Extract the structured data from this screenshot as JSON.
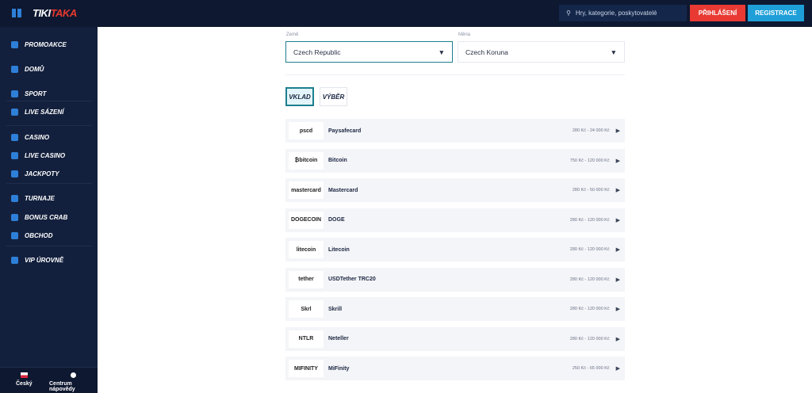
{
  "header": {
    "logo_a": "TIKI",
    "logo_b": "TAKA",
    "search_placeholder": "Hry, kategorie, poskytovatelé",
    "login": "PŘIHLÁŠENÍ",
    "register": "REGISTRACE"
  },
  "sidebar": {
    "items": [
      {
        "label": "PROMOAKCE",
        "icon": "gift-icon"
      },
      {
        "label": "DOMŮ",
        "icon": "home-icon"
      },
      {
        "label": "SPORT",
        "icon": "ball-icon"
      },
      {
        "label": "LIVE SÁZENÍ",
        "icon": "live-icon"
      },
      {
        "label": "CASINO",
        "icon": "casino-icon"
      },
      {
        "label": "LIVE CASINO",
        "icon": "card-icon"
      },
      {
        "label": "JACKPOTY",
        "icon": "seven-icon"
      },
      {
        "label": "TURNAJE",
        "icon": "trophy-icon"
      },
      {
        "label": "BONUS CRAB",
        "icon": "crab-icon"
      },
      {
        "label": "OBCHOD",
        "icon": "shop-icon"
      },
      {
        "label": "VIP ÚROVNĚ",
        "icon": "crown-icon"
      }
    ],
    "footer": {
      "language": "Český",
      "help": "Centrum nápovědy"
    }
  },
  "main": {
    "country_label": "Země",
    "country": "Czech Republic",
    "currency_label": "Měna",
    "currency": "Czech Koruna",
    "tabs": [
      "VKLAD",
      "VÝBĚR"
    ],
    "methods": [
      {
        "logo": "pscd",
        "name": "Paysafecard",
        "range": "280 Kč - 24 000 Kč"
      },
      {
        "logo": "₿bitcoin",
        "name": "Bitcoin",
        "range": "750 Kč - 120 000 Kč"
      },
      {
        "logo": "mastercard",
        "name": "Mastercard",
        "range": "280 Kč - 50 000 Kč"
      },
      {
        "logo": "DOGECOIN",
        "name": "DOGE",
        "range": "280 Kč - 120 000 Kč"
      },
      {
        "logo": "litecoin",
        "name": "Litecoin",
        "range": "280 Kč - 120 000 Kč"
      },
      {
        "logo": "tether",
        "name": "USDTether TRC20",
        "range": "280 Kč - 120 000 Kč"
      },
      {
        "logo": "Skrl",
        "name": "Skrill",
        "range": "280 Kč - 120 000 Kč"
      },
      {
        "logo": "NTLR",
        "name": "Neteller",
        "range": "280 Kč - 120 000 Kč"
      },
      {
        "logo": "MIFINITY",
        "name": "MiFinity",
        "range": "250 Kč - 65 000 Kč"
      }
    ]
  },
  "colors": {
    "header": "#0e1830",
    "sidebar": "#13203d",
    "login": "#e83a33",
    "register": "#1e9fd8",
    "accent": "#1c7f8f"
  }
}
